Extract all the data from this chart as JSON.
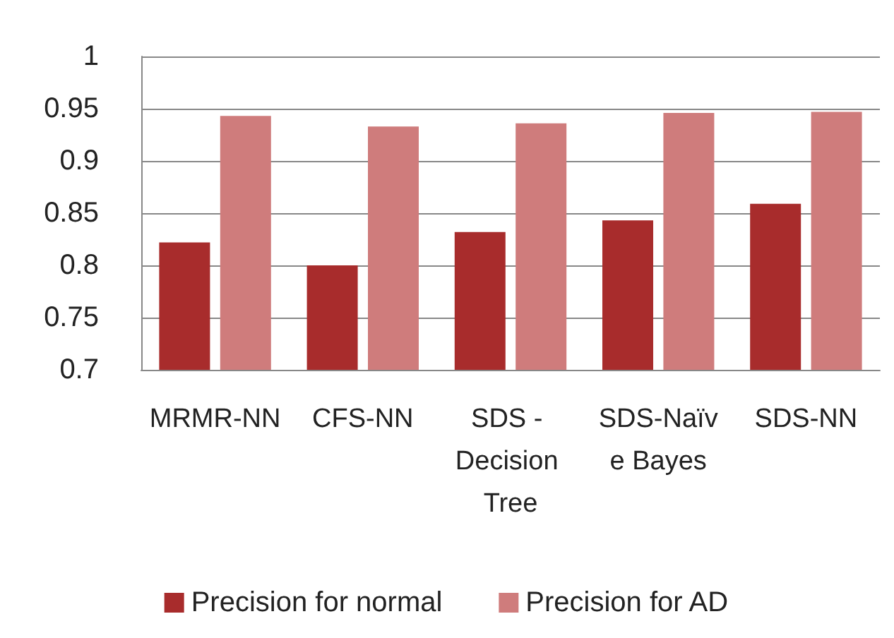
{
  "chart_data": {
    "type": "bar",
    "categories": [
      "MRMR-NN",
      "CFS-NN",
      "SDS - Decision Tree",
      "SDS-Naïve Bayes",
      "SDS-NN"
    ],
    "series": [
      {
        "name": "Precision for normal",
        "color": "#a82c2c",
        "values": [
          0.822,
          0.8,
          0.832,
          0.843,
          0.859
        ]
      },
      {
        "name": "Precision for AD",
        "color": "#cf7c7c",
        "values": [
          0.943,
          0.933,
          0.936,
          0.946,
          0.947
        ]
      }
    ],
    "ylim": [
      0.7,
      1
    ],
    "yticks": [
      0.7,
      0.75,
      0.8,
      0.85,
      0.9,
      0.95,
      1
    ],
    "grid": "y",
    "legend": "bottom"
  }
}
